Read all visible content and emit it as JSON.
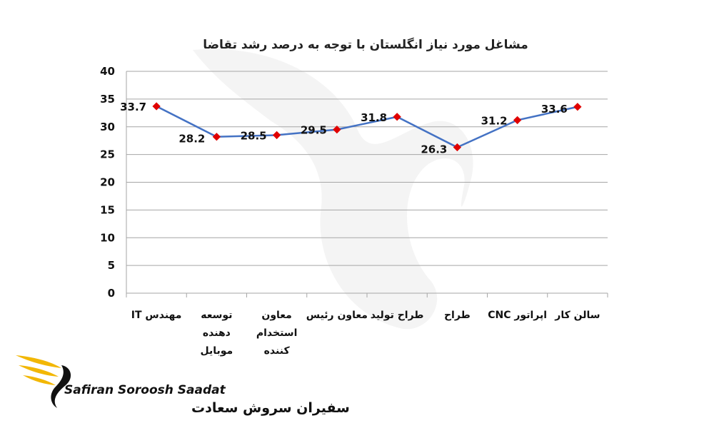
{
  "chart_data": {
    "type": "line",
    "title": "مشاغل مورد نیاز انگلستان با توجه به درصد رشد تقاضا",
    "categories": [
      [
        "مهندس IT"
      ],
      [
        "توسعه",
        "دهنده",
        "موبایل"
      ],
      [
        "معاون",
        "استخدام",
        "کننده"
      ],
      [
        "معاون رئیس"
      ],
      [
        "طراح تولید"
      ],
      [
        "طراح"
      ],
      [
        "اپراتور CNC"
      ],
      [
        "سالن کار"
      ]
    ],
    "values": [
      33.7,
      28.2,
      28.5,
      29.5,
      31.8,
      26.3,
      31.2,
      33.6
    ],
    "value_labels": [
      "33.7",
      "28.2",
      "28.5",
      "29.5",
      "31.8",
      "26.3",
      "31.2",
      "33.6"
    ],
    "ylim": [
      0,
      40
    ],
    "yticks": [
      "0",
      "5",
      "10",
      "15",
      "20",
      "25",
      "30",
      "35",
      "40"
    ],
    "grid": true,
    "legend": "none",
    "line_color": "#4472C4",
    "marker_color": "#E00000"
  },
  "logo": {
    "name_en": "Safiran Soroosh Saadat",
    "name_fa": "سفیران سروش سعادت",
    "accent_color": "#F2B705"
  }
}
